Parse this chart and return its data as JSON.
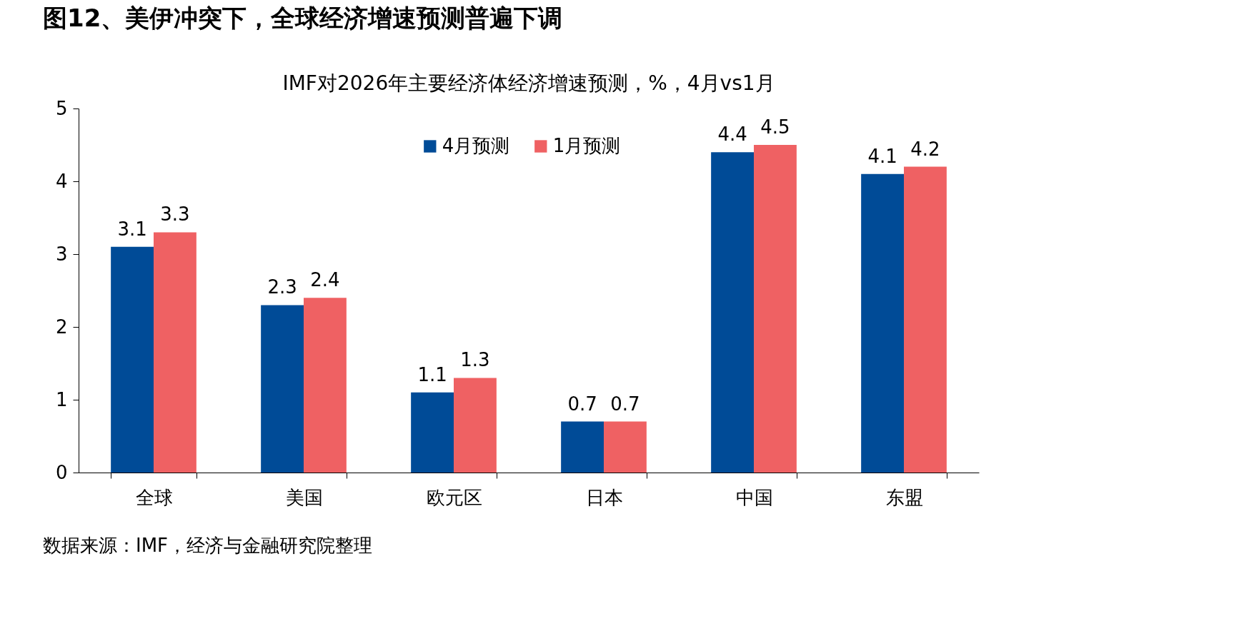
{
  "chart_data": {
    "type": "bar",
    "title": "图12、美伊冲突下，全球经济增速预测普遍下调",
    "subtitle": "IMF对2026年主要经济体经济增速预测，%，4月vs1月",
    "categories": [
      "全球",
      "美国",
      "欧元区",
      "日本",
      "中国",
      "东盟"
    ],
    "series": [
      {
        "name": "4月预测",
        "color": "#004b97",
        "values": [
          3.1,
          2.3,
          1.1,
          0.7,
          4.4,
          4.1
        ]
      },
      {
        "name": "1月预测",
        "color": "#ef6163",
        "values": [
          3.3,
          2.4,
          1.3,
          0.7,
          4.5,
          4.2
        ]
      }
    ],
    "ylim": [
      0,
      5
    ],
    "yticks": [
      0,
      1,
      2,
      3,
      4,
      5
    ],
    "data_labels": true,
    "grid": false,
    "legend": "top",
    "annotations": [
      "数据来源：IMF，经济与金融研究院整理"
    ]
  }
}
